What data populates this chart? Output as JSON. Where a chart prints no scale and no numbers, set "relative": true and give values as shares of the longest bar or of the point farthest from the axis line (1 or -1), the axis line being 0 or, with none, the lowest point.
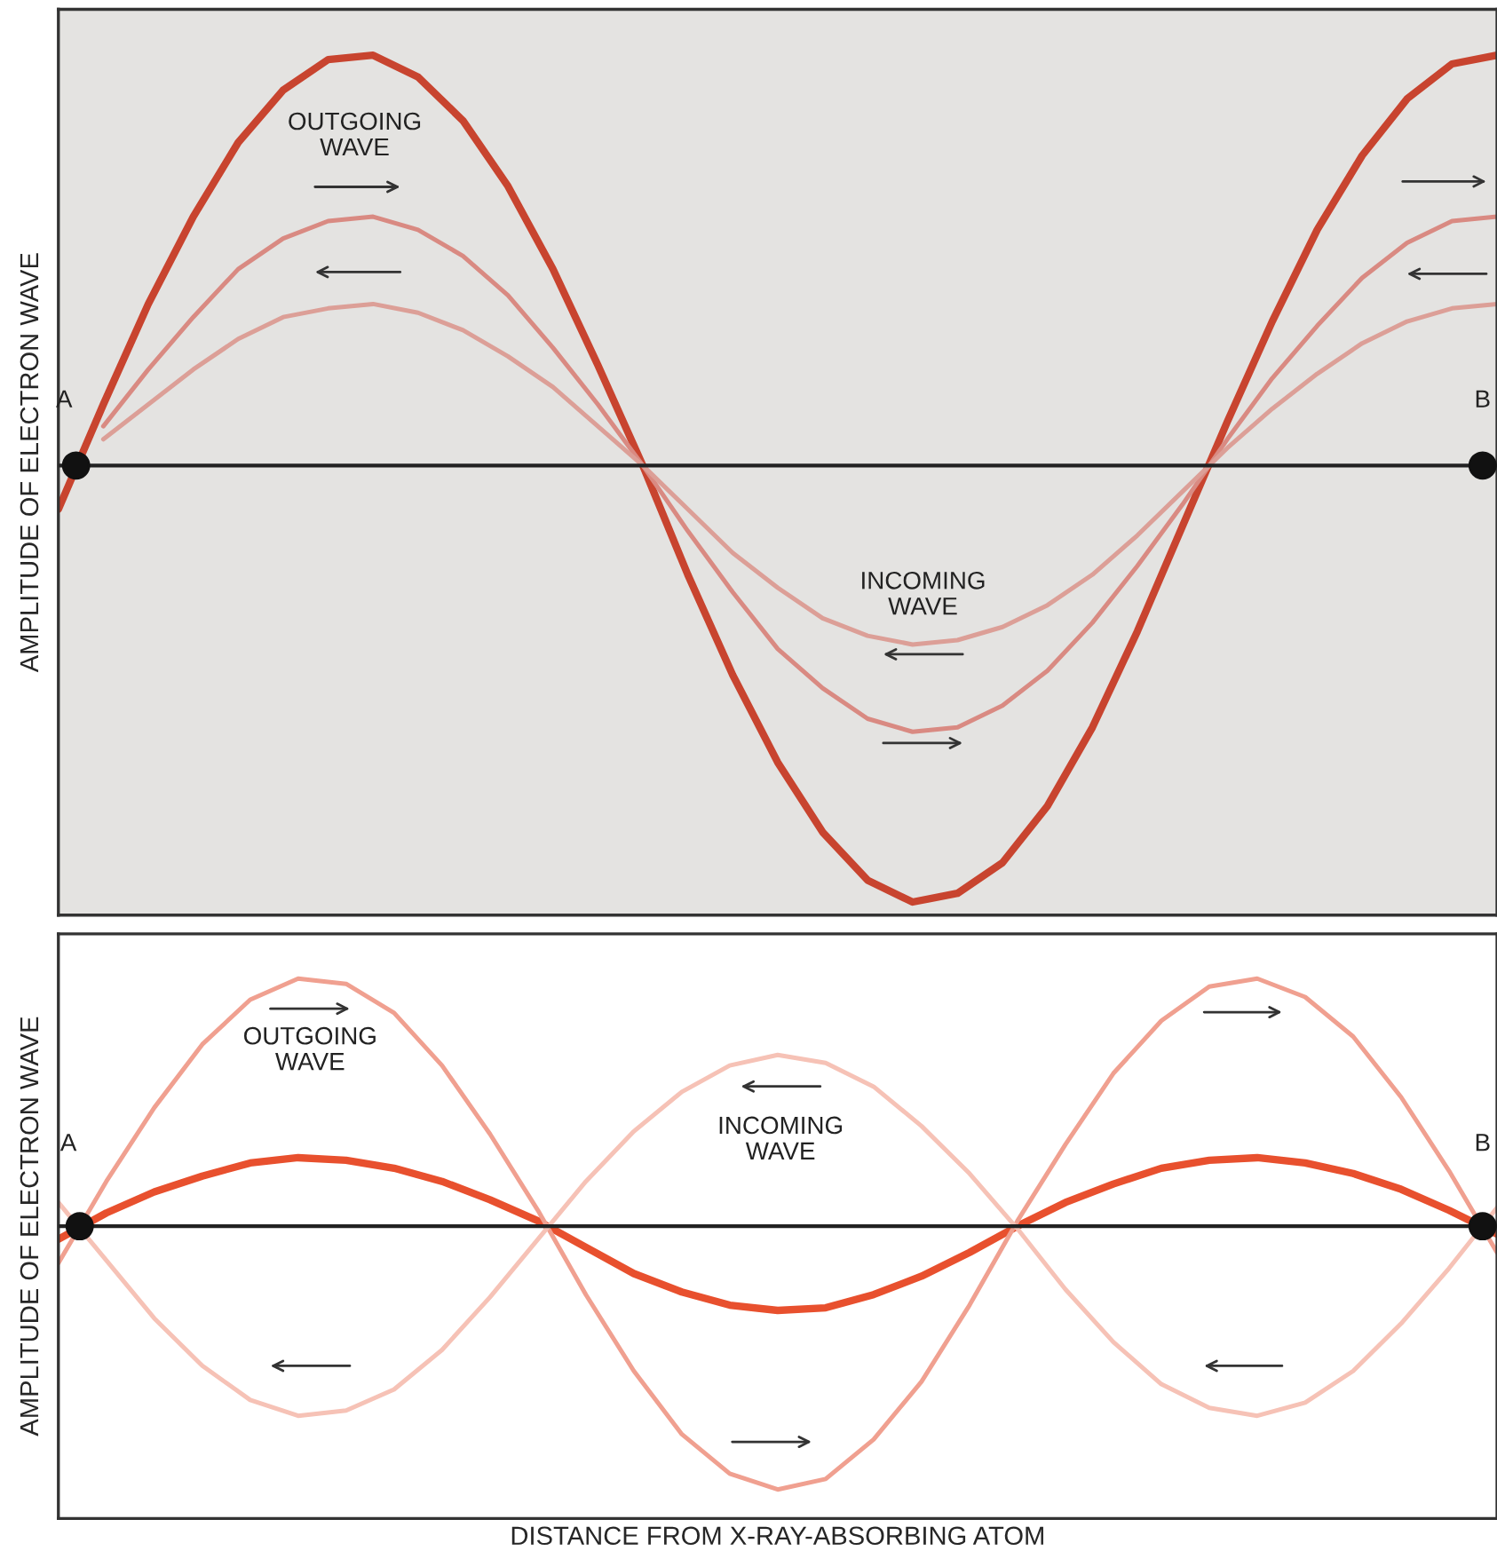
{
  "chart_data": [
    {
      "type": "line",
      "relative": true,
      "ylabel": "AMPLITUDE OF ELECTRON WAVE",
      "tick_labels": false,
      "categories": [
        null,
        null,
        null,
        null,
        null,
        null,
        null,
        null,
        null,
        null,
        null,
        null,
        null,
        null,
        null,
        null,
        null,
        null,
        null,
        null,
        null,
        null,
        null,
        null,
        null,
        null,
        null,
        null,
        null,
        null,
        null,
        null,
        null
      ],
      "series": [
        {
          "color": "#c8442f",
          "values": [
            -0.1,
            0.14,
            0.37,
            0.57,
            0.74,
            0.86,
            0.93,
            0.94,
            0.89,
            0.79,
            0.64,
            0.45,
            0.23,
            0.0,
            -0.25,
            -0.48,
            -0.68,
            -0.84,
            -0.95,
            -1.0,
            -0.98,
            -0.91,
            -0.78,
            -0.6,
            -0.38,
            -0.14,
            0.1,
            0.33,
            0.54,
            0.71,
            0.84,
            0.92,
            0.94
          ]
        },
        {
          "color": "#d98a82",
          "values": [
            null,
            0.09,
            0.22,
            0.34,
            0.45,
            0.52,
            0.56,
            0.57,
            0.54,
            0.48,
            0.39,
            0.27,
            0.14,
            0.0,
            -0.15,
            -0.29,
            -0.42,
            -0.51,
            -0.58,
            -0.61,
            -0.6,
            -0.55,
            -0.47,
            -0.36,
            -0.23,
            -0.09,
            0.06,
            0.2,
            0.32,
            0.43,
            0.51,
            0.56,
            0.57
          ]
        },
        {
          "color": "#dc9f97",
          "values": [
            null,
            0.06,
            0.14,
            0.22,
            0.29,
            0.34,
            0.36,
            0.37,
            0.35,
            0.31,
            0.25,
            0.18,
            0.09,
            0.0,
            -0.1,
            -0.2,
            -0.28,
            -0.35,
            -0.39,
            -0.41,
            -0.4,
            -0.37,
            -0.32,
            -0.25,
            -0.16,
            -0.06,
            0.04,
            0.13,
            0.21,
            0.28,
            0.33,
            0.36,
            0.37
          ]
        }
      ],
      "ref_lines": [
        {
          "axis": "y",
          "value": 0,
          "color": "#222222"
        }
      ],
      "annotations": [
        "OUTGOING\nWAVE",
        "INCOMING\nWAVE",
        "A",
        "B"
      ]
    },
    {
      "type": "line",
      "relative": true,
      "xlabel": "DISTANCE FROM X-RAY-ABSORBING ATOM",
      "ylabel": "AMPLITUDE OF ELECTRON WAVE",
      "tick_labels": false,
      "categories": [
        null,
        null,
        null,
        null,
        null,
        null,
        null,
        null,
        null,
        null,
        null,
        null,
        null,
        null,
        null,
        null,
        null,
        null,
        null,
        null,
        null,
        null,
        null,
        null,
        null,
        null,
        null,
        null,
        null,
        null,
        null
      ],
      "series": [
        {
          "color": "#e8502e",
          "values": [
            -0.05,
            0.05,
            0.13,
            0.19,
            0.24,
            0.26,
            0.25,
            0.22,
            0.17,
            0.1,
            0.02,
            -0.08,
            -0.18,
            -0.25,
            -0.3,
            -0.32,
            -0.31,
            -0.26,
            -0.19,
            -0.1,
            0.0,
            0.09,
            0.16,
            0.22,
            0.25,
            0.26,
            0.24,
            0.2,
            0.14,
            0.06,
            -0.03
          ]
        },
        {
          "color": "#f0a090",
          "values": [
            -0.14,
            0.17,
            0.45,
            0.69,
            0.86,
            0.94,
            0.92,
            0.81,
            0.61,
            0.35,
            0.06,
            -0.26,
            -0.55,
            -0.79,
            -0.94,
            -1.0,
            -0.96,
            -0.81,
            -0.59,
            -0.3,
            0.02,
            0.31,
            0.58,
            0.78,
            0.91,
            0.94,
            0.87,
            0.72,
            0.49,
            0.21,
            -0.1
          ]
        },
        {
          "color": "#f6c2b6",
          "values": [
            0.09,
            -0.13,
            -0.35,
            -0.53,
            -0.66,
            -0.72,
            -0.7,
            -0.62,
            -0.47,
            -0.27,
            -0.05,
            0.17,
            0.36,
            0.51,
            0.61,
            0.65,
            0.62,
            0.53,
            0.38,
            0.2,
            -0.01,
            -0.24,
            -0.44,
            -0.6,
            -0.69,
            -0.72,
            -0.67,
            -0.55,
            -0.37,
            -0.16,
            0.07
          ]
        }
      ],
      "ref_lines": [
        {
          "axis": "y",
          "value": 0,
          "color": "#222222"
        }
      ],
      "annotations": [
        "OUTGOING\nWAVE",
        "INCOMING\nWAVE",
        "A",
        "B"
      ]
    }
  ]
}
